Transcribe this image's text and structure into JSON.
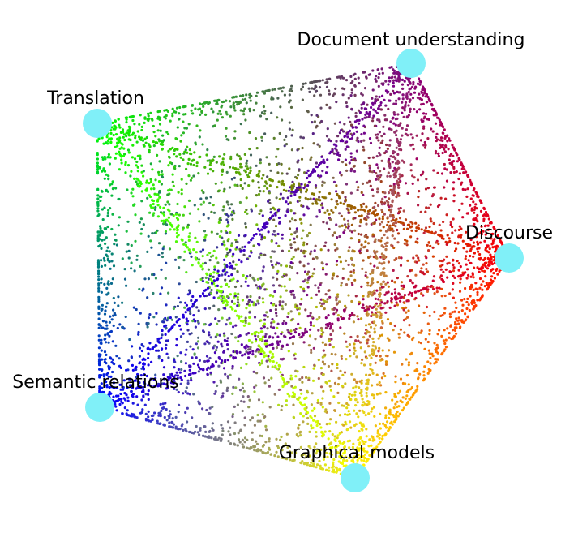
{
  "topics": [
    {
      "id": "document-understanding",
      "label": "Document understanding",
      "color": "#800080"
    },
    {
      "id": "translation",
      "label": "Translation",
      "color": "#00ff00"
    },
    {
      "id": "discourse",
      "label": "Discourse",
      "color": "#ff0000"
    },
    {
      "id": "semantic-relations",
      "label": "Semantic relations",
      "color": "#0000ff"
    },
    {
      "id": "graphical-models",
      "label": "Graphical models",
      "color": "#ffff00"
    }
  ],
  "node_color": "#80f0f8"
}
